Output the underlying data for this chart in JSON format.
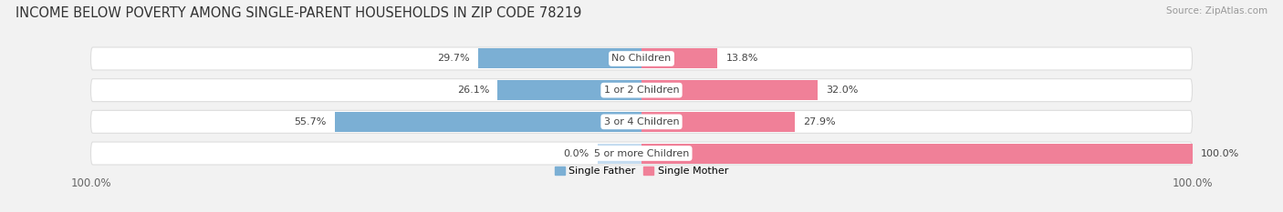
{
  "title": "INCOME BELOW POVERTY AMONG SINGLE-PARENT HOUSEHOLDS IN ZIP CODE 78219",
  "source": "Source: ZipAtlas.com",
  "categories": [
    "No Children",
    "1 or 2 Children",
    "3 or 4 Children",
    "5 or more Children"
  ],
  "single_father": [
    29.7,
    26.1,
    55.7,
    0.0
  ],
  "single_mother": [
    13.8,
    32.0,
    27.9,
    100.0
  ],
  "father_color": "#7BAFD4",
  "father_color_light": "#C5DCF0",
  "mother_color": "#F08098",
  "mother_color_light": "#F9C0CE",
  "bg_color": "#F2F2F2",
  "row_bg_color": "#FFFFFF",
  "separator_color": "#DDDDDD",
  "title_fontsize": 10.5,
  "source_fontsize": 7.5,
  "label_fontsize": 8.0,
  "tick_fontsize": 8.5,
  "bar_height": 0.72,
  "max_val": 100.0,
  "legend_labels": [
    "Single Father",
    "Single Mother"
  ],
  "label_color": "#444444",
  "tick_color": "#666666"
}
